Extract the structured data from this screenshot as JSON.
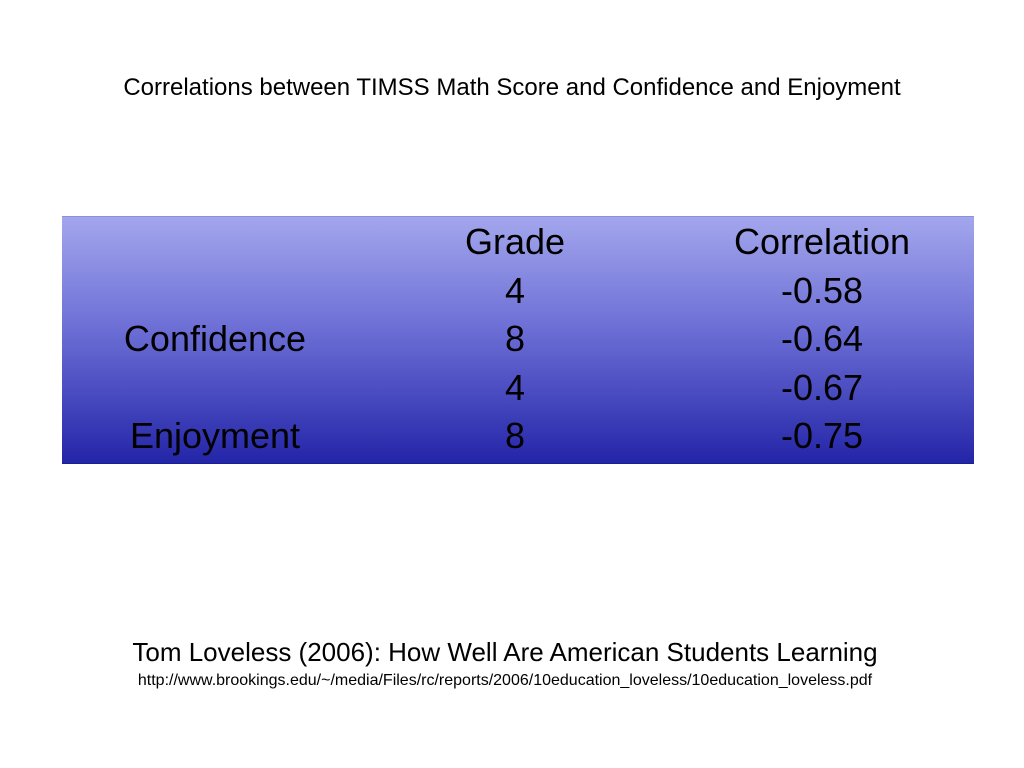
{
  "slide": {
    "title": "Correlations between TIMSS Math Score and Confidence and Enjoyment"
  },
  "table": {
    "header": {
      "label": "",
      "grade": "Grade",
      "correlation": "Correlation"
    },
    "rows": [
      {
        "label": "",
        "grade": "4",
        "correlation": "-0.58"
      },
      {
        "label": "Confidence",
        "grade": "8",
        "correlation": "-0.64"
      },
      {
        "label": "",
        "grade": "4",
        "correlation": "-0.67"
      },
      {
        "label": "Enjoyment",
        "grade": "8",
        "correlation": "-0.75"
      }
    ]
  },
  "source": {
    "citation": "Tom Loveless (2006): How Well Are American Students Learning",
    "url": "http://www.brookings.edu/~/media/Files/rc/reports/2006/10education_loveless/10education_loveless.pdf"
  }
}
